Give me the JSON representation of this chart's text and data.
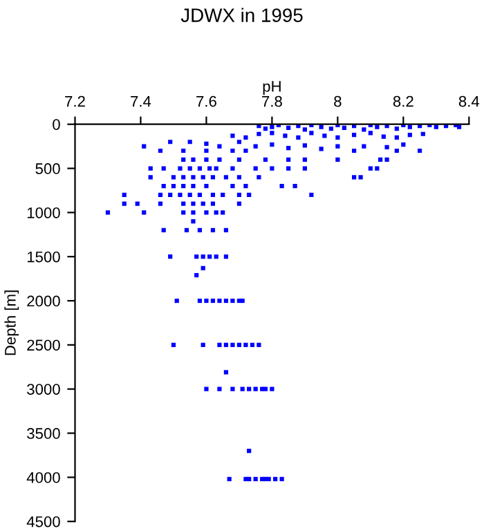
{
  "chart_data": {
    "type": "scatter",
    "title": "JDWX in 1995",
    "xlabel": "pH",
    "ylabel": "Depth [m]",
    "xlim": [
      7.2,
      8.4
    ],
    "xticks": [
      7.2,
      7.4,
      7.6,
      7.8,
      8,
      8.2,
      8.4
    ],
    "ylim": [
      4500,
      0
    ],
    "yticks": [
      0,
      500,
      1000,
      1500,
      2000,
      2500,
      3000,
      3500,
      4000,
      4500
    ],
    "marker": "square",
    "grid": false,
    "legend": false,
    "series": [
      {
        "color": "#0000ff",
        "x": [
          7.76,
          7.78,
          7.8,
          7.82,
          7.85,
          7.88,
          7.9,
          7.92,
          7.95,
          7.98,
          8.0,
          8.02,
          8.05,
          8.08,
          8.1,
          8.12,
          8.15,
          8.18,
          8.2,
          8.22,
          8.25,
          8.28,
          8.3,
          8.33,
          8.36,
          8.37,
          7.68,
          7.72,
          7.76,
          7.8,
          7.84,
          7.88,
          7.92,
          7.96,
          8.0,
          8.05,
          8.1,
          8.14,
          8.18,
          8.22,
          8.26,
          7.41,
          7.49,
          7.55,
          7.6,
          7.64,
          7.7,
          7.75,
          7.8,
          7.85,
          7.9,
          7.95,
          8.0,
          8.05,
          8.08,
          8.15,
          8.2,
          8.25,
          8.18,
          7.46,
          7.53,
          7.6,
          7.68,
          7.72,
          7.53,
          7.56,
          7.6,
          7.64,
          7.7,
          7.78,
          7.85,
          7.9,
          8.0,
          8.13,
          8.15,
          7.43,
          7.47,
          7.52,
          7.55,
          7.58,
          7.61,
          7.63,
          7.68,
          7.75,
          7.8,
          7.85,
          7.9,
          8.1,
          8.12,
          7.43,
          7.5,
          7.53,
          7.56,
          7.59,
          7.62,
          7.66,
          7.7,
          7.76,
          8.05,
          8.07,
          7.47,
          7.5,
          7.53,
          7.56,
          7.6,
          7.68,
          7.72,
          7.83,
          7.87,
          7.35,
          7.46,
          7.49,
          7.52,
          7.55,
          7.58,
          7.62,
          7.65,
          7.7,
          7.73,
          7.92,
          7.35,
          7.39,
          7.46,
          7.53,
          7.56,
          7.59,
          7.62,
          7.7,
          7.3,
          7.41,
          7.53,
          7.56,
          7.6,
          7.63,
          7.65,
          7.56,
          7.47,
          7.54,
          7.58,
          7.62,
          7.66,
          7.49,
          7.57,
          7.59,
          7.61,
          7.63,
          7.66,
          7.59,
          7.57,
          7.51,
          7.58,
          7.6,
          7.62,
          7.64,
          7.66,
          7.68,
          7.7,
          7.71,
          7.5,
          7.59,
          7.64,
          7.66,
          7.68,
          7.7,
          7.72,
          7.74,
          7.76,
          7.66,
          7.6,
          7.64,
          7.68,
          7.71,
          7.73,
          7.75,
          7.77,
          7.78,
          7.8,
          7.73,
          7.67,
          7.72,
          7.73,
          7.75,
          7.77,
          7.78,
          7.79,
          7.81,
          7.83
        ],
        "values": [
          20,
          50,
          30,
          10,
          40,
          20,
          60,
          10,
          30,
          50,
          10,
          40,
          20,
          60,
          10,
          30,
          20,
          50,
          10,
          30,
          20,
          10,
          30,
          20,
          10,
          30,
          130,
          150,
          110,
          100,
          130,
          150,
          100,
          130,
          150,
          120,
          100,
          140,
          150,
          120,
          110,
          250,
          200,
          200,
          220,
          250,
          200,
          250,
          230,
          270,
          240,
          280,
          250,
          300,
          250,
          260,
          230,
          300,
          300,
          300,
          300,
          300,
          300,
          300,
          400,
          400,
          400,
          400,
          400,
          400,
          400,
          400,
          400,
          400,
          400,
          500,
          500,
          500,
          500,
          500,
          500,
          500,
          500,
          500,
          500,
          500,
          500,
          500,
          500,
          600,
          600,
          600,
          600,
          600,
          600,
          600,
          600,
          600,
          600,
          600,
          700,
          700,
          700,
          700,
          700,
          700,
          700,
          700,
          700,
          800,
          800,
          800,
          800,
          800,
          800,
          800,
          800,
          800,
          800,
          800,
          900,
          900,
          900,
          900,
          900,
          900,
          900,
          900,
          1000,
          1000,
          1000,
          1000,
          1000,
          1000,
          1000,
          1100,
          1200,
          1200,
          1200,
          1200,
          1200,
          1500,
          1500,
          1500,
          1500,
          1500,
          1500,
          1630,
          1710,
          2000,
          2000,
          2000,
          2000,
          2000,
          2000,
          2000,
          2000,
          2000,
          2500,
          2500,
          2500,
          2500,
          2500,
          2500,
          2500,
          2500,
          2500,
          2810,
          3000,
          3000,
          3000,
          3000,
          3000,
          3000,
          3000,
          3000,
          3000,
          3700,
          4020,
          4020,
          4020,
          4020,
          4020,
          4020,
          4020,
          4020,
          4020
        ]
      }
    ]
  }
}
